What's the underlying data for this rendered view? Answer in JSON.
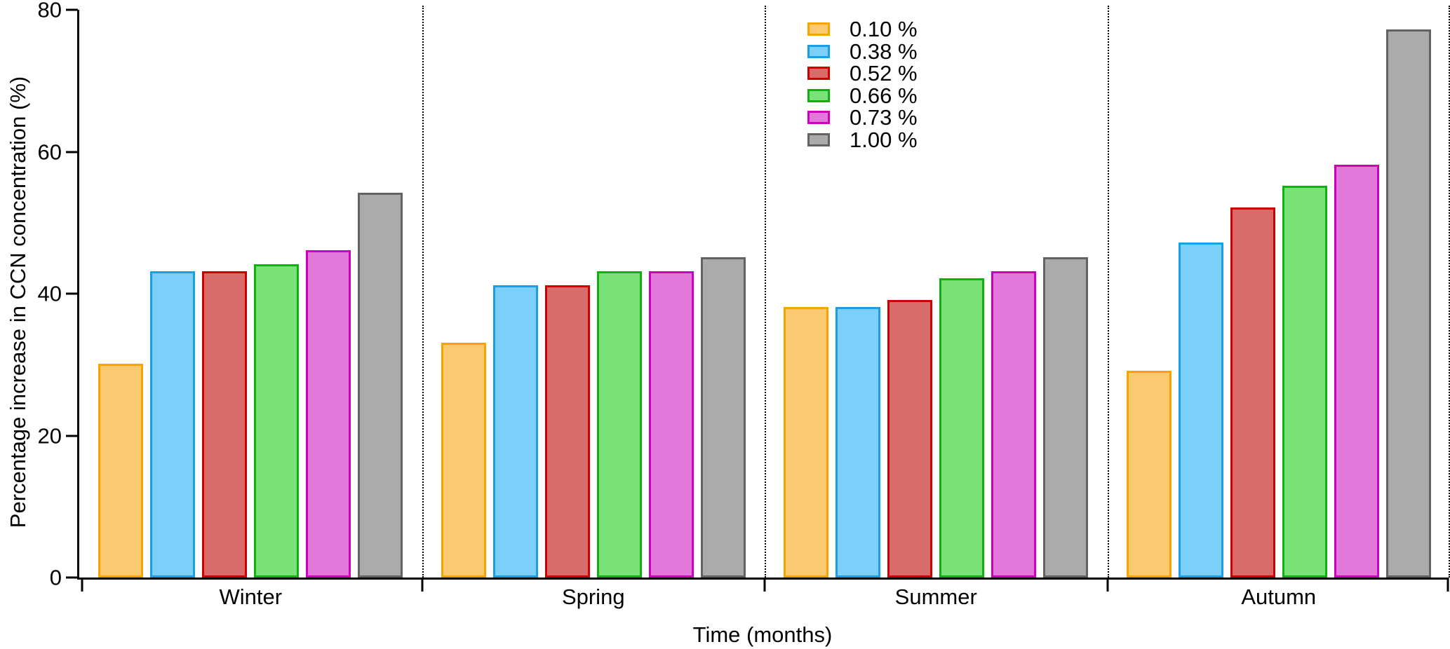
{
  "chart_data": {
    "type": "bar",
    "title": "",
    "xlabel": "Time (months)",
    "ylabel": "Percentage increase in CCN concentration (%)",
    "ylim": [
      0,
      80
    ],
    "yticks": [
      0,
      20,
      40,
      60,
      80
    ],
    "grid": false,
    "legend_position": "top-center",
    "group_separators": "dotted-vertical-lines",
    "categories": [
      "Winter",
      "Spring",
      "Summer",
      "Autumn"
    ],
    "series": [
      {
        "name": "0.10 %",
        "fill": "#FBCA70",
        "stroke": "#F7A400",
        "values": [
          30,
          33,
          38,
          29
        ]
      },
      {
        "name": "0.38 %",
        "fill": "#7CCFF9",
        "stroke": "#1B9EE8",
        "values": [
          43,
          41,
          38,
          47
        ]
      },
      {
        "name": "0.52 %",
        "fill": "#D96B6B",
        "stroke": "#CC0000",
        "values": [
          43,
          41,
          39,
          52
        ]
      },
      {
        "name": "0.66 %",
        "fill": "#79E279",
        "stroke": "#10B010",
        "values": [
          44,
          43,
          42,
          55
        ]
      },
      {
        "name": "0.73 %",
        "fill": "#E378DB",
        "stroke": "#CE00BE",
        "values": [
          46,
          43,
          43,
          58
        ]
      },
      {
        "name": "1.00 %",
        "fill": "#ABABAB",
        "stroke": "#636363",
        "values": [
          54,
          45,
          45,
          77
        ]
      }
    ],
    "axis_color": "#000000"
  }
}
